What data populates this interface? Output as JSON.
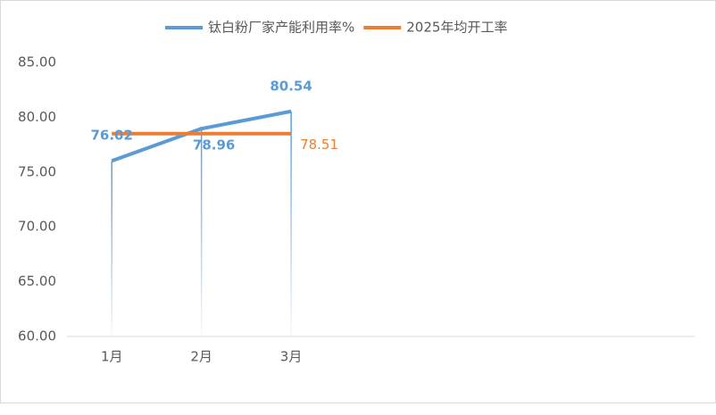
{
  "chart_data": {
    "type": "line",
    "categories": [
      "1月",
      "2月",
      "3月",
      null,
      null,
      null,
      null
    ],
    "series": [
      {
        "name": "钛白粉厂家产能利用率%",
        "color": "#5b9bd5",
        "values": [
          76.02,
          78.96,
          80.54,
          null,
          null,
          null,
          null
        ],
        "data_labels": "all",
        "drop_lines": true
      },
      {
        "name": "2025年均开工率",
        "color": "#ed7d31",
        "values": [
          78.51,
          78.51,
          78.51,
          null,
          null,
          null,
          null
        ],
        "data_labels": "last",
        "drop_lines": false
      }
    ],
    "ylim": [
      60,
      85
    ],
    "yticks": [
      {
        "value": 60,
        "label": "60.00"
      },
      {
        "value": 65,
        "label": "65.00"
      },
      {
        "value": 70,
        "label": "70.00"
      },
      {
        "value": 75,
        "label": "75.00"
      },
      {
        "value": 80,
        "label": "80.00"
      },
      {
        "value": 85,
        "label": "85.00"
      }
    ],
    "legend": "top",
    "grid": false
  }
}
